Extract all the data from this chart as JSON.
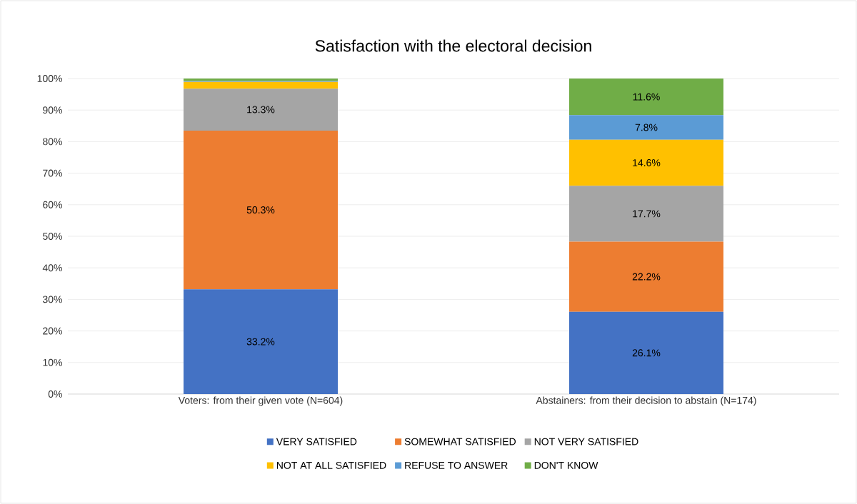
{
  "chart_data": {
    "type": "bar",
    "stacked": true,
    "title": "Satisfaction with the electoral decision",
    "categories": [
      "Voters: from their given vote (N=604)",
      "Abstainers: from their decision to abstain (N=174)"
    ],
    "series": [
      {
        "name": "VERY SATISFIED",
        "color": "#4472c4",
        "values": [
          33.2,
          26.1
        ],
        "value_labels": [
          "33.2%",
          "26.1%"
        ]
      },
      {
        "name": "SOMEWHAT SATISFIED",
        "color": "#ed7d31",
        "values": [
          50.3,
          22.2
        ],
        "value_labels": [
          "50.3%",
          "22.2%"
        ]
      },
      {
        "name": "NOT VERY SATISFIED",
        "color": "#a5a5a5",
        "values": [
          13.3,
          17.7
        ],
        "value_labels": [
          "13.3%",
          "17.7%"
        ]
      },
      {
        "name": "NOT AT ALL SATISFIED",
        "color": "#ffc000",
        "values": [
          2.1,
          14.6
        ],
        "value_labels": [
          null,
          "14.6%"
        ]
      },
      {
        "name": "REFUSE TO ANSWER",
        "color": "#5b9bd5",
        "values": [
          0.3,
          7.8
        ],
        "value_labels": [
          null,
          "7.8%"
        ]
      },
      {
        "name": "DON'T KNOW",
        "color": "#70ad47",
        "values": [
          0.8,
          11.6
        ],
        "value_labels": [
          null,
          "11.6%"
        ]
      }
    ],
    "ylim": [
      0,
      100
    ],
    "yticks": [
      {
        "value": 0,
        "label": "0%"
      },
      {
        "value": 10,
        "label": "10%"
      },
      {
        "value": 20,
        "label": "20%"
      },
      {
        "value": 30,
        "label": "30%"
      },
      {
        "value": 40,
        "label": "40%"
      },
      {
        "value": 50,
        "label": "50%"
      },
      {
        "value": 60,
        "label": "60%"
      },
      {
        "value": 70,
        "label": "70%"
      },
      {
        "value": 80,
        "label": "80%"
      },
      {
        "value": 90,
        "label": "90%"
      },
      {
        "value": 100,
        "label": "100%"
      }
    ],
    "grid": "y",
    "legend": "bottom"
  }
}
